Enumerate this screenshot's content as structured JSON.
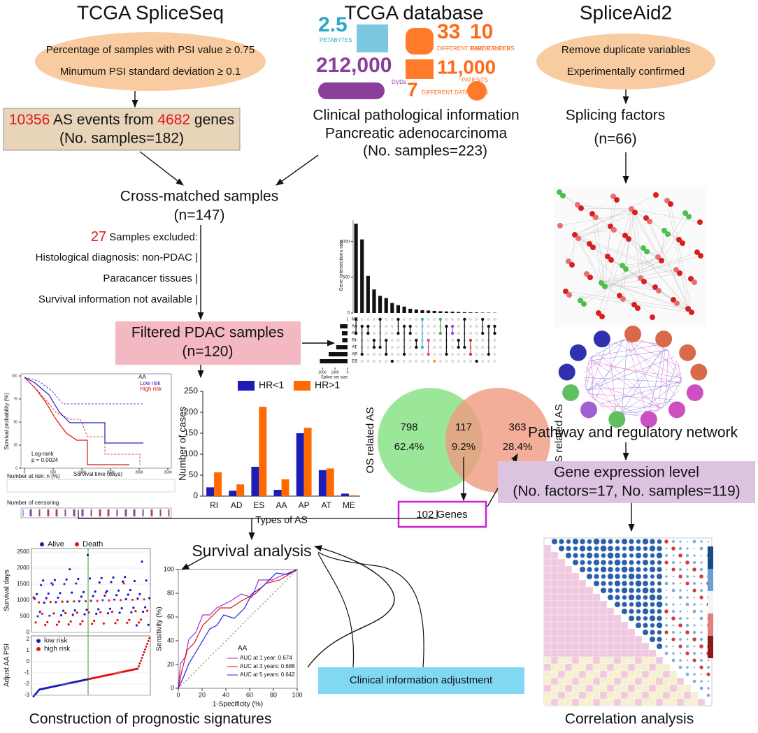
{
  "headers": {
    "left": "TCGA SpliceSeq",
    "center": "TCGA database",
    "right": "SpliceAid2"
  },
  "left_filter": {
    "line1": "Percentage of samples with PSI value ≥ 0.75",
    "line2": "Minumum PSI standard deviation ≥ 0.1"
  },
  "right_filter": {
    "line1": "Remove duplicate variables",
    "line2": "Experimentally confirmed"
  },
  "as_events": {
    "events": "10356",
    "mid": " AS events from ",
    "genes": "4682",
    "end": " genes",
    "samples": "(No. samples=182)"
  },
  "tcga_info": {
    "petabytes": "2.5",
    "petabytes_label": "PETABYTES",
    "tumor_types": "33",
    "tumor_label": "DIFFERENT TUMOR TYPES",
    "rare": "10",
    "rare_label": "RARE CANCERS",
    "dvds": "212,000",
    "dvds_label": "DVDs",
    "patients": "11,000",
    "patients_label": "PATIENTS",
    "data_types": "7",
    "data_types_label": "DIFFERENT DATA TYPES"
  },
  "clinical": {
    "line1": "Clinical pathological information",
    "line2": "Pancreatic adenocarcinoma",
    "line3": "(No. samples=223)"
  },
  "splicing_factors": {
    "line1": "Splicing factors",
    "line2": "(n=66)"
  },
  "cross_matched": {
    "line1": "Cross-matched samples",
    "line2": "(n=147)"
  },
  "excluded": {
    "count": "27",
    "label": " Samples excluded:",
    "reasons": [
      "Histological diagnosis: non-PDAC |",
      "Paracancer tissues |",
      "Survival information not available |"
    ]
  },
  "filtered": {
    "line1": "Filtered PDAC samples",
    "line2": "(n=120)"
  },
  "upset": {
    "y_label": "Gene Intersections size",
    "x_label": "Splice set size",
    "sets": [
      "ME",
      "AA",
      "AD",
      "RI",
      "AT",
      "AP",
      "ES"
    ],
    "set_sizes": [
      30,
      600,
      450,
      420,
      900,
      1500,
      2200
    ],
    "set_xlim": [
      0,
      2500
    ],
    "set_xticks": [
      2000,
      1000,
      0
    ],
    "intersections": [
      1250,
      1030,
      520,
      330,
      240,
      210,
      140,
      110,
      90,
      60,
      50,
      40,
      35,
      30,
      25,
      22,
      20,
      15,
      12,
      10,
      8,
      6,
      5,
      4
    ],
    "ylim": [
      0,
      1300
    ],
    "yticks": [
      0,
      500,
      1000
    ]
  },
  "survival_plot": {
    "title": "AA",
    "low": "Low risk",
    "high": "High risk",
    "y_label": "Survival probability (%)",
    "x_label": "Survival time (days)",
    "test": "Log-rank",
    "p": "p = 0.0024",
    "risk_table": "Number at risk: n (%)",
    "censor": "Number of censoring",
    "yticks": [
      0,
      25,
      50,
      75,
      100
    ],
    "xticks": [
      0,
      500,
      1000,
      1500,
      2000,
      2500
    ]
  },
  "bar_chart": {
    "type": "bar",
    "y_label": "Number of cases",
    "x_label": "Types of AS",
    "categories": [
      "RI",
      "AD",
      "ES",
      "AA",
      "AP",
      "AT",
      "ME"
    ],
    "series": [
      {
        "name": "HR<1",
        "color": "#1c1cb8",
        "values": [
          21,
          13,
          70,
          15,
          150,
          62,
          6
        ]
      },
      {
        "name": "HR>1",
        "color": "#ff6a00",
        "values": [
          57,
          28,
          213,
          40,
          163,
          66,
          2
        ]
      }
    ],
    "ylim": [
      0,
      250
    ],
    "yticks": [
      0,
      50,
      100,
      150,
      200,
      250
    ],
    "legend": "top"
  },
  "venn": {
    "left_label": "OS related AS",
    "right_label": "RFS related AS",
    "left": 798,
    "left_pct": "62.4%",
    "both": 117,
    "both_pct": "9.2%",
    "right": 363,
    "right_pct": "28.4%"
  },
  "genes": "102 Genes",
  "pathway": "Pathway and regulatory network",
  "expression": {
    "line1": "Gene expression level",
    "line2": "(No. factors=17, No. samples=119)"
  },
  "survival_analysis": "Survival analysis",
  "scatter": {
    "alive": "Alive",
    "death": "Death",
    "y_label_top": "Survival days",
    "low": "low risk",
    "high": "high risk",
    "y_label_bottom": "Adjust AA PSI",
    "yticks_top": [
      0,
      500,
      1000,
      1500,
      2000,
      2500
    ],
    "yticks_bottom": [
      -3,
      -2,
      -1,
      0,
      1,
      2
    ]
  },
  "roc": {
    "y_label": "Sensitivity (%)",
    "x_label": "1-Specificity (%)",
    "title": "AA",
    "auc1": "AUC at 1 year: 0.674",
    "auc3": "AUC at 3 years: 0.688",
    "auc5": "AUC at 5 years: 0.642",
    "ticks": [
      0,
      20,
      40,
      60,
      80,
      100
    ]
  },
  "adjustment": "Clinical information adjustment",
  "footers": {
    "left": "Construction of prognostic signatures",
    "right": "Correlation analysis"
  }
}
